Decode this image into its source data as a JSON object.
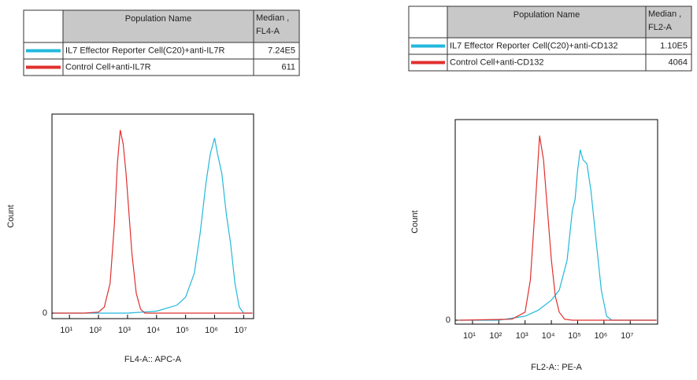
{
  "chart_data": [
    {
      "type": "line",
      "x_label": "FL4-A:: APC-A",
      "y_label": "Count",
      "log_x": true,
      "xlim": [
        2.5,
        22000000
      ],
      "xticks": [
        {
          "value": 10,
          "label": "10¹"
        },
        {
          "value": 100,
          "label": "10²"
        },
        {
          "value": 1000,
          "label": "10³"
        },
        {
          "value": 10000,
          "label": "10⁴"
        },
        {
          "value": 100000,
          "label": "10⁵"
        },
        {
          "value": 1000000,
          "label": "10⁶"
        },
        {
          "value": 10000000,
          "label": "10⁷"
        }
      ],
      "ylim": [
        0,
        100
      ],
      "yticks": [
        0
      ],
      "table_name_header": "Population Name",
      "table_median_header": [
        "Median ,",
        "FL4-A"
      ],
      "series": [
        {
          "name": "IL7 Effector Reporter Cell(C20)+anti-IL7R",
          "color": "#22b8dc",
          "median": 724000,
          "median_label": "7.24E5",
          "x": [
            3,
            1000,
            10000,
            50000,
            100000,
            200000,
            316000,
            501000,
            708000,
            1000000,
            1259000,
            1778000,
            2512000,
            3548000,
            5012000,
            7079000,
            10000000,
            20000000
          ],
          "values": [
            0,
            0,
            1,
            4,
            8,
            20,
            40,
            65,
            80,
            88,
            80,
            70,
            50,
            35,
            15,
            3,
            0,
            0
          ]
        },
        {
          "name": "Control Cell+anti-IL7R",
          "color": "#e0302e",
          "median": 611,
          "x": [
            3,
            32,
            100,
            158,
            251,
            355,
            447,
            562,
            708,
            891,
            1122,
            1413,
            1995,
            2818,
            3981,
            20000000
          ],
          "values": [
            0,
            0,
            0.5,
            3,
            15,
            45,
            75,
            92,
            85,
            70,
            50,
            30,
            10,
            2,
            0,
            0
          ]
        }
      ]
    },
    {
      "type": "line",
      "x_label": "FL2-A:: PE-A",
      "y_label": "Count",
      "log_x": true,
      "xlim": [
        2.2,
        110000000
      ],
      "xticks": [
        {
          "value": 10,
          "label": "10¹"
        },
        {
          "value": 100,
          "label": "10²"
        },
        {
          "value": 1000,
          "label": "10³"
        },
        {
          "value": 10000,
          "label": "10⁴"
        },
        {
          "value": 100000,
          "label": "10⁵"
        },
        {
          "value": 1000000,
          "label": "10⁶"
        },
        {
          "value": 10000000,
          "label": "10⁷"
        }
      ],
      "ylim": [
        0,
        100
      ],
      "yticks": [
        0
      ],
      "table_name_header": "Population Name",
      "table_median_header": [
        "Median ,",
        "FL2-A"
      ],
      "series": [
        {
          "name": "IL7 Effector Reporter Cell(C20)+anti-CD132",
          "color": "#22b8dc",
          "median": 110000,
          "median_label": "1.10E5",
          "x": [
            3,
            100,
            1000,
            3162,
            10000,
            19953,
            39811,
            63096,
            79433,
            100000,
            125893,
            158489,
            223872,
            316228,
            501187,
            794328,
            1258925,
            1995262,
            100000000
          ],
          "values": [
            0,
            0,
            2,
            5,
            10,
            15,
            30,
            55,
            60,
            75,
            85,
            80,
            78,
            65,
            40,
            15,
            2,
            0,
            0
          ]
        },
        {
          "name": "Control Cell+anti-CD132",
          "color": "#e0302e",
          "median": 4064,
          "x": [
            3,
            316,
            1000,
            1585,
            2512,
            3548,
            5012,
            7079,
            10000,
            14125,
            19953,
            31623,
            63096,
            100000000
          ],
          "values": [
            0,
            0.5,
            4,
            20,
            60,
            92,
            80,
            55,
            30,
            12,
            4,
            0.5,
            0,
            0
          ]
        }
      ]
    }
  ]
}
